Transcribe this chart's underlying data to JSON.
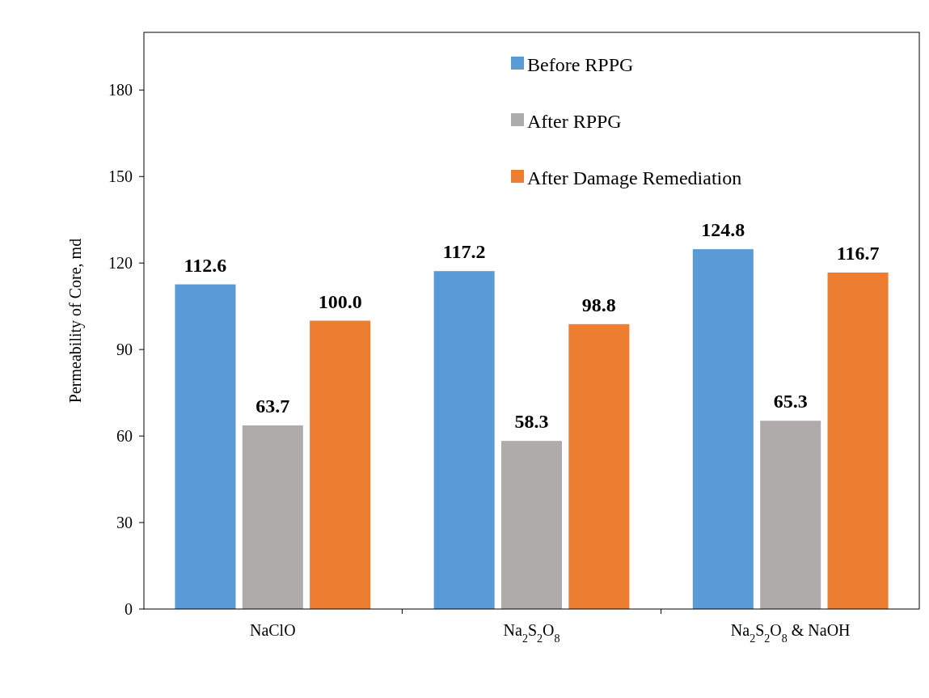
{
  "chart_data": {
    "type": "bar",
    "ylabel": "Permeability of Core, md",
    "categories": [
      "NaClO",
      "Na$_{2}$S$_{2}$O$_{8}$",
      "Na$_{2}$S$_{2}$O$_{8}$ & NaOH"
    ],
    "series": [
      {
        "name": "Before RPPG",
        "color": "#5b9bd5",
        "values": [
          112.6,
          117.2,
          124.8
        ]
      },
      {
        "name": "After RPPG",
        "color": "#afabab",
        "values": [
          63.7,
          58.3,
          65.3
        ]
      },
      {
        "name": "After Damage Remediation",
        "color": "#ed7d31",
        "values": [
          100.0,
          98.8,
          116.7
        ]
      }
    ],
    "value_labels": [
      [
        "112.6",
        "117.2",
        "124.8"
      ],
      [
        "63.7",
        "58.3",
        "65.3"
      ],
      [
        "100.0",
        "98.8",
        "116.7"
      ]
    ],
    "ylim": [
      0,
      200
    ],
    "yticks": [
      0,
      30,
      60,
      90,
      120,
      150,
      180
    ],
    "grid": false,
    "legend": "top right"
  }
}
